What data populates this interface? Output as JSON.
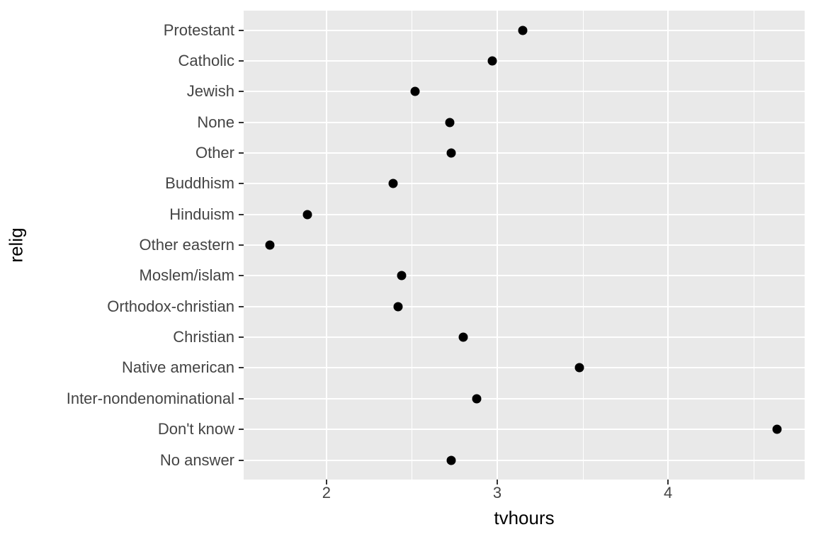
{
  "chart_data": {
    "type": "scatter",
    "subtype": "horizontal-dot-plot",
    "title": "",
    "xlabel": "tvhours",
    "ylabel": "relig",
    "categories": [
      "Protestant",
      "Catholic",
      "Jewish",
      "None",
      "Other",
      "Buddhism",
      "Hinduism",
      "Other eastern",
      "Moslem/islam",
      "Orthodox-christian",
      "Christian",
      "Native american",
      "Inter-nondenominational",
      "Don't know",
      "No answer"
    ],
    "values": [
      3.15,
      2.97,
      2.52,
      2.72,
      2.73,
      2.39,
      1.89,
      1.67,
      2.44,
      2.42,
      2.8,
      3.48,
      2.88,
      4.64,
      2.73
    ],
    "xlim": [
      1.515,
      4.8
    ],
    "x_major_ticks": [
      2,
      3,
      4
    ],
    "x_major_tick_labels": [
      "2",
      "3",
      "4"
    ],
    "x_minor_gridlines": [
      2.5,
      3.5,
      4.5
    ],
    "grid": true,
    "legend": false
  },
  "style": {
    "panel_bg": "#E9E9E9",
    "grid_color": "#FFFFFF",
    "point_color": "#000000",
    "tick_label_color": "#444444",
    "axis_title_color": "#000000",
    "tick_mark_color": "#333333",
    "figure_bg": "#FFFFFF"
  }
}
